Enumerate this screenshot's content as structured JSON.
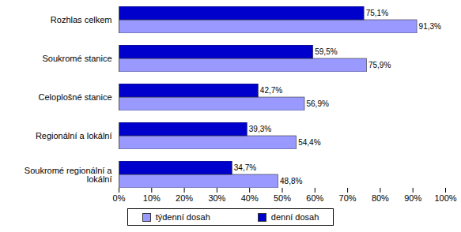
{
  "chart_data": {
    "type": "bar",
    "orientation": "horizontal",
    "categories": [
      "Rozhlas celkem",
      "Soukromé stanice",
      "Celoplošné stanice",
      "Regionální a lokální",
      "Soukromé regionální a lokální"
    ],
    "series": [
      {
        "name": "týdenní dosah",
        "color": "#9999ff",
        "values": [
          91.3,
          75.9,
          56.9,
          54.4,
          48.8
        ],
        "value_labels": [
          "91,3%",
          "75,9%",
          "56,9%",
          "54,4%",
          "48,8%"
        ]
      },
      {
        "name": "denní dosah",
        "color": "#0000cc",
        "values": [
          75.1,
          59.5,
          42.7,
          39.3,
          34.7
        ],
        "value_labels": [
          "75,1%",
          "59,5%",
          "42,7%",
          "39,3%",
          "34,7%"
        ]
      }
    ],
    "xlim": [
      0,
      100
    ],
    "xticks": [
      {
        "value": 0,
        "label": "0%"
      },
      {
        "value": 10,
        "label": "10%"
      },
      {
        "value": 20,
        "label": "20%"
      },
      {
        "value": 30,
        "label": "30%"
      },
      {
        "value": 40,
        "label": "40%"
      },
      {
        "value": 50,
        "label": "50%"
      },
      {
        "value": 60,
        "label": "60%"
      },
      {
        "value": 70,
        "label": "70%"
      },
      {
        "value": 80,
        "label": "80%"
      },
      {
        "value": 90,
        "label": "90%"
      },
      {
        "value": 100,
        "label": "100%"
      }
    ],
    "data_labels": true,
    "legend": "bottom",
    "grid": false
  }
}
